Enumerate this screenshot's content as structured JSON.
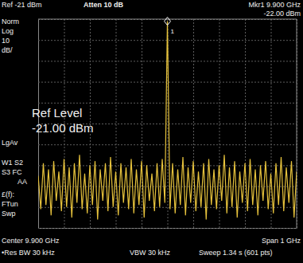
{
  "chart_data": {
    "type": "line",
    "x": [
      9.4,
      9.41,
      9.42,
      9.43,
      9.44,
      9.45,
      9.46,
      9.47,
      9.48,
      9.49,
      9.5,
      9.51,
      9.52,
      9.53,
      9.54,
      9.55,
      9.56,
      9.57,
      9.58,
      9.59,
      9.6,
      9.61,
      9.62,
      9.63,
      9.64,
      9.65,
      9.66,
      9.67,
      9.68,
      9.69,
      9.7,
      9.71,
      9.72,
      9.73,
      9.74,
      9.75,
      9.76,
      9.77,
      9.78,
      9.79,
      9.8,
      9.81,
      9.82,
      9.83,
      9.84,
      9.85,
      9.86,
      9.87,
      9.88,
      9.89,
      9.9,
      9.91,
      9.92,
      9.93,
      9.94,
      9.95,
      9.96,
      9.97,
      9.98,
      9.99,
      10,
      10.01,
      10.02,
      10.03,
      10.04,
      10.05,
      10.06,
      10.07,
      10.08,
      10.09,
      10.1,
      10.11,
      10.12,
      10.13,
      10.14,
      10.15,
      10.16,
      10.17,
      10.18,
      10.19,
      10.2,
      10.21,
      10.22,
      10.23,
      10.24,
      10.25,
      10.26,
      10.27,
      10.28,
      10.29,
      10.3,
      10.31,
      10.32,
      10.33,
      10.34,
      10.35,
      10.36,
      10.37,
      10.38,
      10.39,
      10.4
    ],
    "series": [
      {
        "color": "#e6c23c",
        "values": [
          -96,
          -112,
          -90,
          -110,
          -93,
          -115,
          -89,
          -108,
          -94,
          -113,
          -88,
          -111,
          -92,
          -116,
          -90,
          -109,
          -86,
          -112,
          -95,
          -114,
          -91,
          -110,
          -89,
          -117,
          -93,
          -108,
          -90,
          -113,
          -87,
          -111,
          -94,
          -115,
          -90,
          -109,
          -92,
          -112,
          -88,
          -114,
          -93,
          -110,
          -89,
          -116,
          -91,
          -108,
          -95,
          -113,
          -90,
          -111,
          -88,
          -109,
          -22,
          -112,
          -90,
          -114,
          -93,
          -110,
          -87,
          -115,
          -92,
          -109,
          -89,
          -113,
          -94,
          -111,
          -90,
          -117,
          -88,
          -110,
          -93,
          -112,
          -91,
          -108,
          -86,
          -114,
          -92,
          -111,
          -89,
          -116,
          -94,
          -109,
          -90,
          -113,
          -88,
          -110,
          -93,
          -115,
          -91,
          -108,
          -89,
          -112,
          -95,
          -114,
          -90,
          -110,
          -87,
          -113,
          -92,
          -109,
          -89,
          -116,
          -94
        ]
      }
    ],
    "xlim": [
      9.4,
      10.4
    ],
    "xticks": [
      9.4,
      9.5,
      9.6,
      9.7,
      9.8,
      9.9,
      10,
      10.1,
      10.2,
      10.3,
      10.4
    ],
    "ylim": [
      -121,
      -21
    ],
    "yticks": [
      -121,
      -111,
      -101,
      -91,
      -81,
      -71,
      -61,
      -51,
      -41,
      -31,
      -21
    ],
    "grid": true,
    "tick_labels": false,
    "peak_marker": {
      "text": "1",
      "x": 9.9,
      "y": -22
    },
    "annotations": [
      "Ref -21 dBm",
      "Atten 10 dB",
      "Mkr1 9.900 GHz",
      "-22.00 dBm",
      "Norm",
      "Log",
      "10",
      "dB/",
      "Ref Level",
      "-21.00 dBm",
      "LgAv",
      "W1 S2",
      "S3 FC",
      "AA",
      "£(f):",
      "FTun",
      "Swp",
      "Center 9.900 GHz",
      "Span 1 GHz",
      "•Res BW 30 kHz",
      "VBW 30 kHz",
      "Sweep 1.34 s (601 pts)"
    ]
  }
}
